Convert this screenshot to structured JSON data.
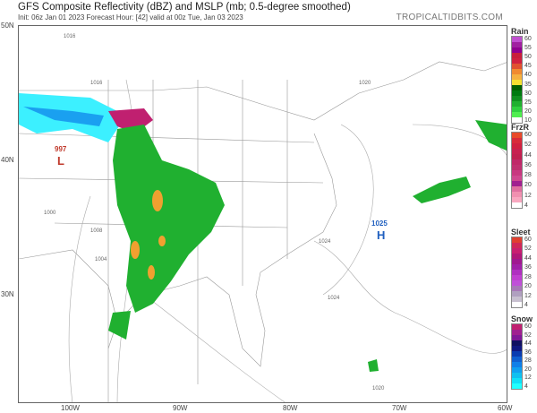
{
  "header": {
    "title": "GFS Composite Reflectivity (dBZ) and MSLP (mb; 0.5-degree smoothed)",
    "subtitle": "Init: 06z Jan 01 2023   Forecast Hour: [42]   valid at 00z Tue, Jan 03 2023",
    "brand": "TROPICALTIDBITS.COM"
  },
  "axes": {
    "lat": [
      "50N",
      "40N",
      "30N"
    ],
    "lon": [
      "100W",
      "90W",
      "80W",
      "70W",
      "60W"
    ]
  },
  "pressure_centers": [
    {
      "type": "L",
      "value": "997",
      "color": "#c0392b"
    },
    {
      "type": "H",
      "value": "1025",
      "color": "#1f5fbf"
    }
  ],
  "isobar_labels": [
    "1016",
    "1016",
    "1020",
    "1024",
    "1024",
    "1008",
    "1004",
    "1000",
    "1020"
  ],
  "legends": [
    {
      "title": "Rain",
      "labels": [
        "60",
        "55",
        "50",
        "45",
        "40",
        "35",
        "30",
        "25",
        "20",
        "10"
      ],
      "colors": [
        "#c050d0",
        "#a020a0",
        "#900090",
        "#c81e3c",
        "#d02040",
        "#e05030",
        "#f08a30",
        "#f5b040",
        "#f5e030",
        "#006000",
        "#007a10",
        "#109020",
        "#20b030",
        "#30d040",
        "#50ee50",
        "#ffffff"
      ]
    },
    {
      "title": "FrzR",
      "labels": [
        "60",
        "52",
        "44",
        "36",
        "28",
        "20",
        "12",
        "4"
      ],
      "colors": [
        "#e84a2a",
        "#d82a3a",
        "#d02040",
        "#c82050",
        "#c02050",
        "#c02868",
        "#c03070",
        "#c83880",
        "#d04890",
        "#a02090",
        "#e070a0",
        "#f090b0",
        "#f8a8c0",
        "#ffffff"
      ]
    },
    {
      "title": "Sleet",
      "labels": [
        "60",
        "52",
        "44",
        "36",
        "28",
        "20",
        "12",
        "4"
      ],
      "colors": [
        "#e04030",
        "#d02858",
        "#c82070",
        "#b01878",
        "#a01890",
        "#a020a8",
        "#b030c0",
        "#c040d0",
        "#c050d8",
        "#a878b8",
        "#b0a0c0",
        "#c8c0d0",
        "#ffffff"
      ]
    },
    {
      "title": "Snow",
      "labels": [
        "60",
        "52",
        "44",
        "36",
        "28",
        "20",
        "12",
        "4"
      ],
      "colors": [
        "#c02070",
        "#a02090",
        "#801898",
        "#101060",
        "#101880",
        "#0a3cb0",
        "#1060d0",
        "#1080e8",
        "#10a0f0",
        "#10c0f0",
        "#10e0f8",
        "#20ffff"
      ]
    }
  ]
}
